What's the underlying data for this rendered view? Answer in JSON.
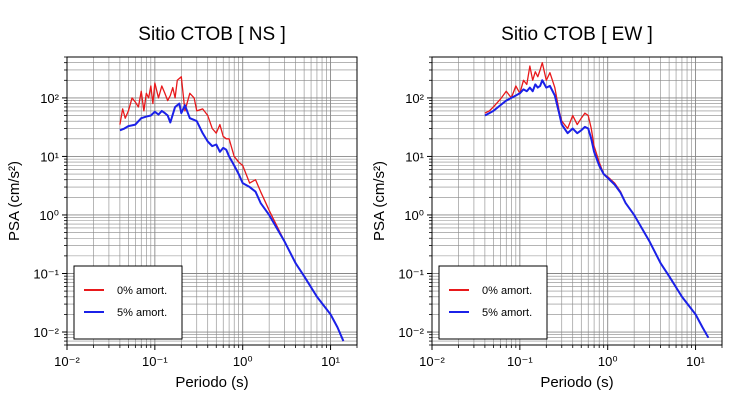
{
  "chart_data": [
    {
      "type": "line",
      "title": "Sitio CTOB [ NS ]",
      "xlabel": "Periodo (s)",
      "ylabel": "PSA (cm/s²)",
      "xscale": "log",
      "yscale": "log",
      "xlim": [
        0.01,
        20
      ],
      "ylim": [
        0.006,
        500
      ],
      "grid": true,
      "legend_position": "bottom-left",
      "x_tick_labels": [
        "10⁻²",
        "10⁻¹",
        "10⁰",
        "10¹"
      ],
      "y_tick_labels": [
        "10⁻²",
        "10⁻¹",
        "10⁰",
        "10¹",
        "10²"
      ],
      "series": [
        {
          "name": "0% amort.",
          "color": "#e8191b",
          "x": [
            0.04,
            0.043,
            0.046,
            0.05,
            0.055,
            0.06,
            0.065,
            0.07,
            0.075,
            0.08,
            0.085,
            0.09,
            0.095,
            0.1,
            0.11,
            0.12,
            0.13,
            0.14,
            0.15,
            0.16,
            0.17,
            0.18,
            0.2,
            0.22,
            0.25,
            0.28,
            0.3,
            0.35,
            0.4,
            0.45,
            0.5,
            0.55,
            0.6,
            0.65,
            0.7,
            0.8,
            0.9,
            1.0,
            1.2,
            1.4,
            1.6,
            2.0,
            3.0,
            4.0,
            5.0,
            7.0,
            10.0,
            12.0,
            14.0
          ],
          "y": [
            35,
            65,
            45,
            60,
            100,
            85,
            70,
            130,
            60,
            120,
            100,
            160,
            80,
            180,
            100,
            160,
            120,
            90,
            110,
            150,
            100,
            200,
            230,
            60,
            120,
            100,
            60,
            65,
            50,
            30,
            25,
            35,
            22,
            20,
            20,
            10,
            8,
            7,
            3.5,
            4,
            2.5,
            1.2,
            0.35,
            0.15,
            0.09,
            0.04,
            0.02,
            0.012,
            0.007
          ]
        },
        {
          "name": "5% amort.",
          "color": "#1b21e8",
          "x": [
            0.04,
            0.045,
            0.05,
            0.06,
            0.07,
            0.08,
            0.09,
            0.1,
            0.11,
            0.12,
            0.13,
            0.14,
            0.15,
            0.17,
            0.19,
            0.2,
            0.22,
            0.25,
            0.28,
            0.3,
            0.35,
            0.4,
            0.45,
            0.5,
            0.55,
            0.6,
            0.65,
            0.7,
            0.8,
            0.9,
            1.0,
            1.2,
            1.4,
            1.6,
            2.0,
            3.0,
            4.0,
            5.0,
            7.0,
            10.0,
            12.0,
            14.0
          ],
          "y": [
            28,
            30,
            33,
            35,
            45,
            48,
            50,
            58,
            52,
            60,
            55,
            50,
            38,
            70,
            80,
            55,
            75,
            45,
            42,
            40,
            25,
            18,
            15,
            16,
            12,
            14,
            13,
            10,
            7,
            5,
            3.5,
            3,
            2.5,
            1.6,
            1.0,
            0.35,
            0.15,
            0.09,
            0.04,
            0.02,
            0.012,
            0.007
          ]
        }
      ]
    },
    {
      "type": "line",
      "title": "Sitio CTOB [ EW ]",
      "xlabel": "Periodo (s)",
      "ylabel": "PSA (cm/s²)",
      "xscale": "log",
      "yscale": "log",
      "xlim": [
        0.01,
        20
      ],
      "ylim": [
        0.006,
        500
      ],
      "grid": true,
      "legend_position": "bottom-left",
      "x_tick_labels": [
        "10⁻²",
        "10⁻¹",
        "10⁰",
        "10¹"
      ],
      "y_tick_labels": [
        "10⁻²",
        "10⁻¹",
        "10⁰",
        "10¹",
        "10²"
      ],
      "series": [
        {
          "name": "0% amort.",
          "color": "#e8191b",
          "x": [
            0.04,
            0.045,
            0.05,
            0.06,
            0.07,
            0.08,
            0.09,
            0.1,
            0.11,
            0.12,
            0.13,
            0.14,
            0.15,
            0.16,
            0.17,
            0.18,
            0.2,
            0.22,
            0.25,
            0.28,
            0.3,
            0.35,
            0.4,
            0.45,
            0.5,
            0.55,
            0.6,
            0.65,
            0.7,
            0.8,
            0.9,
            1.0,
            1.2,
            1.4,
            1.6,
            2.0,
            3.0,
            4.0,
            5.0,
            7.0,
            10.0,
            12.0,
            14.0
          ],
          "y": [
            55,
            60,
            70,
            95,
            130,
            100,
            160,
            120,
            200,
            170,
            350,
            200,
            280,
            230,
            300,
            400,
            200,
            270,
            150,
            60,
            40,
            30,
            50,
            35,
            45,
            55,
            50,
            30,
            15,
            8,
            5,
            4.5,
            3.5,
            2.5,
            1.6,
            1.0,
            0.35,
            0.15,
            0.09,
            0.04,
            0.02,
            0.012,
            0.008
          ]
        },
        {
          "name": "5% amort.",
          "color": "#1b21e8",
          "x": [
            0.04,
            0.045,
            0.05,
            0.06,
            0.07,
            0.08,
            0.09,
            0.1,
            0.11,
            0.12,
            0.13,
            0.14,
            0.15,
            0.16,
            0.17,
            0.18,
            0.2,
            0.22,
            0.25,
            0.28,
            0.3,
            0.35,
            0.4,
            0.45,
            0.5,
            0.55,
            0.6,
            0.65,
            0.7,
            0.8,
            0.9,
            1.0,
            1.2,
            1.4,
            1.6,
            2.0,
            3.0,
            4.0,
            5.0,
            7.0,
            10.0,
            12.0,
            14.0
          ],
          "y": [
            50,
            55,
            60,
            75,
            90,
            100,
            110,
            120,
            140,
            130,
            150,
            130,
            170,
            150,
            160,
            200,
            150,
            160,
            110,
            55,
            35,
            25,
            30,
            25,
            28,
            32,
            30,
            20,
            12,
            7,
            5,
            4.3,
            3.3,
            2.4,
            1.6,
            1.0,
            0.35,
            0.15,
            0.09,
            0.04,
            0.02,
            0.012,
            0.008
          ]
        }
      ]
    }
  ]
}
